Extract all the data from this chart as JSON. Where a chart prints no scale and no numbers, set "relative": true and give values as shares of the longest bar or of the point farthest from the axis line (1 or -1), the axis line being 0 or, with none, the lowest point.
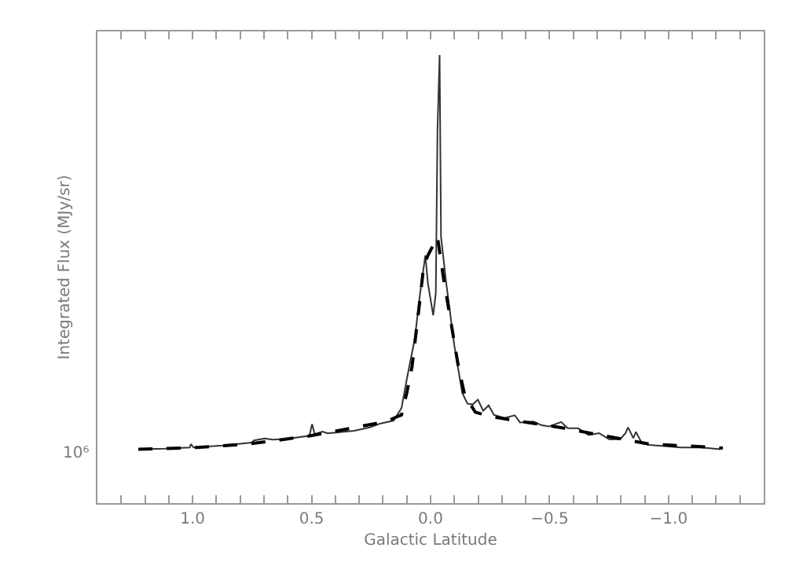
{
  "chart_data": {
    "type": "line",
    "xlabel": "Galactic Latitude",
    "ylabel": "Integrated Flux (MJy/sr)",
    "relative": true,
    "grid": false,
    "marker": "none",
    "annotations": [
      "10⁶"
    ],
    "xlim": [
      1.4,
      -1.4
    ],
    "xticks": [
      {
        "value": 1.3,
        "label": null
      },
      {
        "value": 1.2,
        "label": null
      },
      {
        "value": 1.1,
        "label": null
      },
      {
        "value": 1,
        "label": "1.0"
      },
      {
        "value": 0.9,
        "label": null
      },
      {
        "value": 0.8,
        "label": null
      },
      {
        "value": 0.7,
        "label": null
      },
      {
        "value": 0.6,
        "label": null
      },
      {
        "value": 0.5,
        "label": "0.5"
      },
      {
        "value": 0.4,
        "label": null
      },
      {
        "value": 0.3,
        "label": null
      },
      {
        "value": 0.2,
        "label": null
      },
      {
        "value": 0.1,
        "label": null
      },
      {
        "value": 0,
        "label": "0.0"
      },
      {
        "value": -0.1,
        "label": null
      },
      {
        "value": -0.2,
        "label": null
      },
      {
        "value": -0.3,
        "label": null
      },
      {
        "value": -0.4,
        "label": null
      },
      {
        "value": -0.5,
        "label": "−0.5"
      },
      {
        "value": -0.6,
        "label": null
      },
      {
        "value": -0.7,
        "label": null
      },
      {
        "value": -0.8,
        "label": null
      },
      {
        "value": -0.9,
        "label": null
      },
      {
        "value": -1,
        "label": "−1.0"
      },
      {
        "value": -1.1,
        "label": null
      },
      {
        "value": -1.2,
        "label": null
      },
      {
        "value": -1.3,
        "label": null
      }
    ],
    "series": [
      {
        "color": "#333333",
        "line_style": "solid",
        "x": [
          1.228,
          1.118,
          1.012,
          1.007,
          0.996,
          0.875,
          0.752,
          0.742,
          0.697,
          0.664,
          0.609,
          0.509,
          0.498,
          0.487,
          0.454,
          0.432,
          0.321,
          0.254,
          0.21,
          0.155,
          0.122,
          0.1,
          0.066,
          0.044,
          0.022,
          0.011,
          -0.011,
          -0.022,
          -0.029,
          -0.038,
          -0.044,
          -0.066,
          -0.1,
          -0.133,
          -0.155,
          -0.177,
          -0.199,
          -0.221,
          -0.244,
          -0.266,
          -0.31,
          -0.354,
          -0.376,
          -0.432,
          -0.465,
          -0.498,
          -0.549,
          -0.576,
          -0.62,
          -0.664,
          -0.708,
          -0.752,
          -0.797,
          -0.819,
          -0.83,
          -0.852,
          -0.863,
          -0.885,
          -0.918,
          -0.985,
          -1.051,
          -1.14,
          -1.217
        ],
        "values": [
          0.1203,
          0.1215,
          0.124,
          0.1319,
          0.124,
          0.1286,
          0.1349,
          0.1399,
          0.1444,
          0.1417,
          0.1431,
          0.1503,
          0.1764,
          0.1542,
          0.1594,
          0.1556,
          0.1615,
          0.1694,
          0.1778,
          0.1842,
          0.2125,
          0.2764,
          0.368,
          0.468,
          0.553,
          0.49,
          0.419,
          0.468,
          0.831,
          1,
          0.594,
          0.49,
          0.351,
          0.246,
          0.222,
          0.22,
          0.231,
          0.206,
          0.218,
          0.197,
          0.19,
          0.196,
          0.18,
          0.182,
          0.174,
          0.171,
          0.181,
          0.167,
          0.167,
          0.152,
          0.156,
          0.142,
          0.143,
          0.156,
          0.169,
          0.145,
          0.159,
          0.137,
          0.13,
          0.127,
          0.124,
          0.124,
          0.12
        ]
      },
      {
        "color": "#000000",
        "line_style": "dashed",
        "x": [
          1.228,
          0.985,
          0.764,
          0.52,
          0.365,
          0.188,
          0.122,
          0.1,
          0.078,
          0.051,
          0.029,
          0.011,
          -0.029,
          -0.055,
          -0.088,
          -0.117,
          -0.144,
          -0.188,
          -0.254,
          -0.41,
          -0.564,
          -0.742,
          -0.918,
          -1.096,
          -1.228
        ],
        "values": [
          0.12,
          0.124,
          0.132,
          0.149,
          0.164,
          0.182,
          0.197,
          0.246,
          0.304,
          0.425,
          0.528,
          0.553,
          0.594,
          0.5,
          0.396,
          0.304,
          0.24,
          0.203,
          0.193,
          0.18,
          0.167,
          0.149,
          0.132,
          0.127,
          0.123
        ]
      }
    ]
  }
}
